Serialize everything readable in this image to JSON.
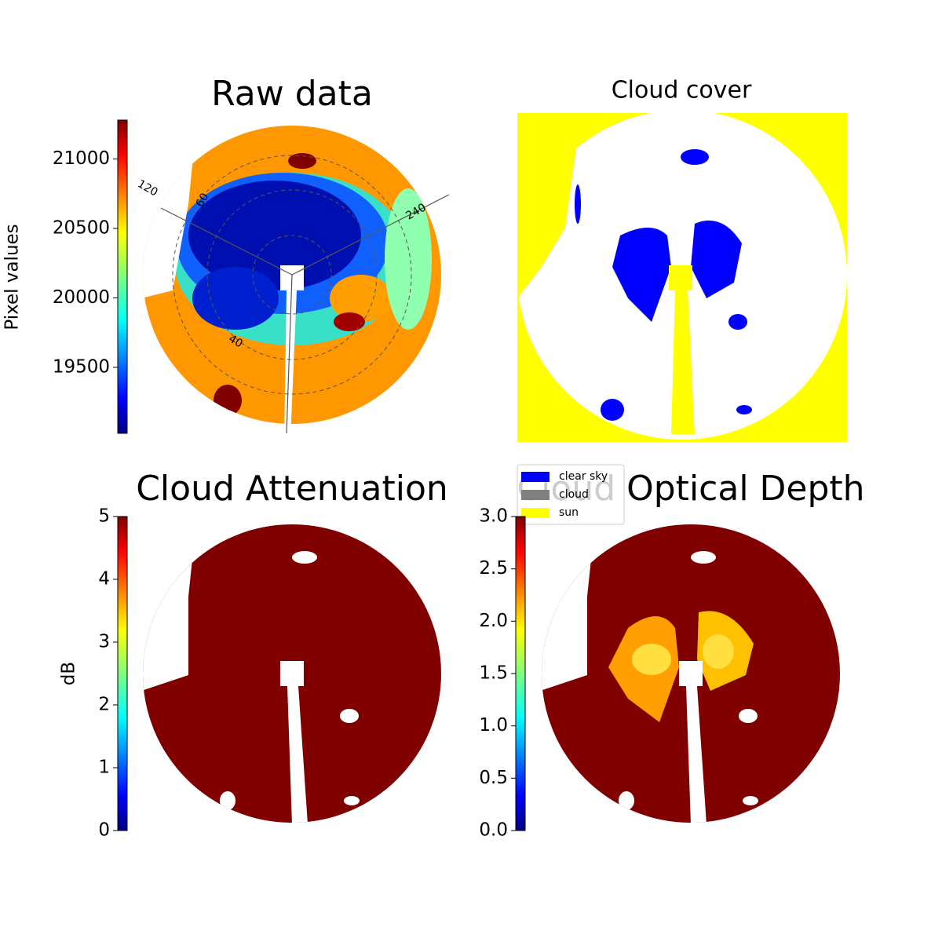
{
  "chart_data": [
    {
      "type": "image",
      "title": "Raw data",
      "colorbar": {
        "label": "Pixel values",
        "lim": [
          19025,
          21280
        ],
        "ticks": [
          19500,
          20000,
          20500,
          21000
        ]
      },
      "polar_labels": [
        "120",
        "60",
        "240",
        "40"
      ]
    },
    {
      "type": "image",
      "title": "Cloud cover",
      "legend": {
        "series": [
          {
            "name": "clear sky",
            "color": "#0000ff"
          },
          {
            "name": "cloud",
            "color": "#808080"
          },
          {
            "name": "sun",
            "color": "#ffff00"
          }
        ]
      }
    },
    {
      "type": "image",
      "title": "Cloud Attenuation",
      "colorbar": {
        "label": "dB",
        "lim": [
          0,
          5
        ],
        "ticks": [
          0,
          1,
          2,
          3,
          4,
          5
        ]
      }
    },
    {
      "type": "image",
      "title": "Cloud Optical Depth",
      "colorbar": {
        "lim": [
          0,
          3
        ],
        "ticks": [
          {
            "value": 0,
            "label": "0.0"
          },
          {
            "value": 0.5,
            "label": "0.5"
          },
          {
            "value": 1,
            "label": "1.0"
          },
          {
            "value": 1.5,
            "label": "1.5"
          },
          {
            "value": 2,
            "label": "2.0"
          },
          {
            "value": 2.5,
            "label": "2.5"
          },
          {
            "value": 3,
            "label": "3.0"
          }
        ]
      }
    }
  ]
}
